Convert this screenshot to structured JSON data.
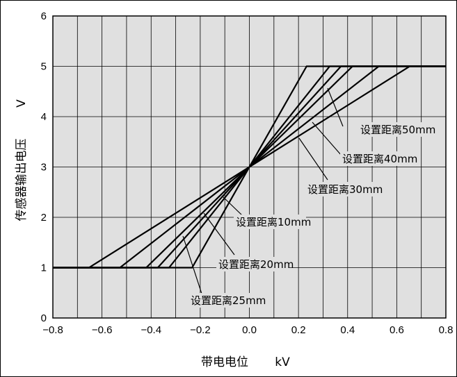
{
  "chart_data": {
    "type": "line",
    "xlabel": "带电电位",
    "xunit": "kV",
    "ylabel": "传感器输出电压",
    "yunit": "V",
    "xlim": [
      -0.8,
      0.8
    ],
    "ylim": [
      0,
      6
    ],
    "x_ticks": [
      "−0.8",
      "−0.6",
      "−0.4",
      "−0.2",
      "0.0",
      "0.2",
      "0.4",
      "0.6",
      "0.8"
    ],
    "y_ticks": [
      "0",
      "1",
      "2",
      "3",
      "4",
      "5",
      "6"
    ],
    "grid": true,
    "background_color": "#e0e0e0",
    "line_color": "#000000",
    "series": [
      {
        "name": "设置距离10mm",
        "x": [
          -0.8,
          -0.233,
          0.233,
          0.8
        ],
        "y": [
          1,
          1,
          5,
          5
        ]
      },
      {
        "name": "设置距离20mm",
        "x": [
          -0.8,
          -0.327,
          0.327,
          0.8
        ],
        "y": [
          1,
          1,
          5,
          5
        ]
      },
      {
        "name": "设置距离25mm",
        "x": [
          -0.8,
          -0.373,
          0.373,
          0.8
        ],
        "y": [
          1,
          1,
          5,
          5
        ]
      },
      {
        "name": "设置距离30mm",
        "x": [
          -0.8,
          -0.42,
          0.42,
          0.8
        ],
        "y": [
          1,
          1,
          5,
          5
        ]
      },
      {
        "name": "设置距离40mm",
        "x": [
          -0.8,
          -0.527,
          0.527,
          0.8
        ],
        "y": [
          1,
          1,
          5,
          5
        ]
      },
      {
        "name": "设置距离50mm",
        "x": [
          -0.8,
          -0.653,
          0.653,
          0.8
        ],
        "y": [
          1,
          1,
          5,
          5
        ]
      }
    ],
    "annotations": [
      {
        "text": "设置距离50mm",
        "target_series": 5
      },
      {
        "text": "设置距离40mm",
        "target_series": 4
      },
      {
        "text": "设置距离30mm",
        "target_series": 3
      },
      {
        "text": "设置距离10mm",
        "target_series": 0
      },
      {
        "text": "设置距离20mm",
        "target_series": 1
      },
      {
        "text": "设置距离25mm",
        "target_series": 2
      }
    ]
  }
}
